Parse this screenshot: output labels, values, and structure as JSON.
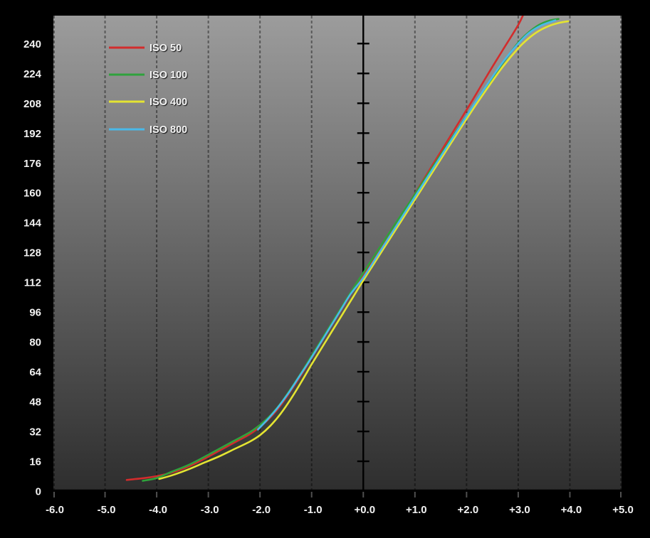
{
  "chart_data": {
    "type": "line",
    "title": "",
    "xlabel": "",
    "ylabel": "",
    "xlim": [
      -6,
      5
    ],
    "ylim": [
      0,
      255
    ],
    "grid": "vertical-dashed-gridlines-only",
    "legend_position": "top-left-inside-plot",
    "x_ticks": [
      {
        "value": -6,
        "label": "-6.0"
      },
      {
        "value": -5,
        "label": "-5.0"
      },
      {
        "value": -4,
        "label": "-4.0"
      },
      {
        "value": -3,
        "label": "-3.0"
      },
      {
        "value": -2,
        "label": "-2.0"
      },
      {
        "value": -1,
        "label": "-1.0"
      },
      {
        "value": 0,
        "label": "+0.0"
      },
      {
        "value": 1,
        "label": "+1.0"
      },
      {
        "value": 2,
        "label": "+2.0"
      },
      {
        "value": 3,
        "label": "+3.0"
      },
      {
        "value": 4,
        "label": "+4.0"
      },
      {
        "value": 5,
        "label": "+5.0"
      }
    ],
    "y_ticks": [
      {
        "value": 0,
        "label": "0"
      },
      {
        "value": 16,
        "label": "16"
      },
      {
        "value": 32,
        "label": "32"
      },
      {
        "value": 48,
        "label": "48"
      },
      {
        "value": 64,
        "label": "64"
      },
      {
        "value": 80,
        "label": "80"
      },
      {
        "value": 96,
        "label": "96"
      },
      {
        "value": 112,
        "label": "112"
      },
      {
        "value": 128,
        "label": "128"
      },
      {
        "value": 144,
        "label": "144"
      },
      {
        "value": 160,
        "label": "160"
      },
      {
        "value": 176,
        "label": "176"
      },
      {
        "value": 192,
        "label": "192"
      },
      {
        "value": 208,
        "label": "208"
      },
      {
        "value": 224,
        "label": "224"
      },
      {
        "value": 240,
        "label": "240"
      }
    ],
    "series": [
      {
        "name": "ISO 50",
        "color": "#d22c2c",
        "points": [
          [
            -4.58,
            6
          ],
          [
            -4.3,
            6.8
          ],
          [
            -4.0,
            8
          ],
          [
            -3.7,
            10
          ],
          [
            -3.4,
            13
          ],
          [
            -3.1,
            17
          ],
          [
            -2.8,
            21.5
          ],
          [
            -2.5,
            26
          ],
          [
            -2.2,
            30.5
          ],
          [
            -2.0,
            34.5
          ],
          [
            -1.8,
            39.5
          ],
          [
            -1.6,
            46
          ],
          [
            -1.4,
            54
          ],
          [
            -1.2,
            62.5
          ],
          [
            -1.0,
            71.5
          ],
          [
            -0.8,
            80.5
          ],
          [
            -0.6,
            89.5
          ],
          [
            -0.4,
            98.5
          ],
          [
            -0.2,
            107.5
          ],
          [
            0,
            116
          ],
          [
            0.3,
            129
          ],
          [
            0.6,
            142
          ],
          [
            0.9,
            155
          ],
          [
            1.2,
            168.5
          ],
          [
            1.5,
            182
          ],
          [
            1.8,
            195.5
          ],
          [
            2.1,
            209
          ],
          [
            2.4,
            223
          ],
          [
            2.7,
            236.5
          ],
          [
            3.0,
            250
          ],
          [
            3.12,
            257
          ]
        ]
      },
      {
        "name": "ISO 100",
        "color": "#2fa23c",
        "points": [
          [
            -4.27,
            5.5
          ],
          [
            -4.0,
            7
          ],
          [
            -3.7,
            10.5
          ],
          [
            -3.4,
            13.8
          ],
          [
            -3.1,
            18
          ],
          [
            -2.8,
            22.5
          ],
          [
            -2.5,
            27
          ],
          [
            -2.2,
            31.5
          ],
          [
            -2.0,
            35.5
          ],
          [
            -1.8,
            40.5
          ],
          [
            -1.6,
            47
          ],
          [
            -1.4,
            55
          ],
          [
            -1.2,
            63.5
          ],
          [
            -1.0,
            72.5
          ],
          [
            -0.8,
            81.5
          ],
          [
            -0.6,
            90.5
          ],
          [
            -0.4,
            99.5
          ],
          [
            -0.2,
            108.5
          ],
          [
            0,
            117
          ],
          [
            0.3,
            129.8
          ],
          [
            0.6,
            142.5
          ],
          [
            0.9,
            155
          ],
          [
            1.2,
            167.8
          ],
          [
            1.5,
            180.5
          ],
          [
            1.8,
            193
          ],
          [
            2.1,
            205.5
          ],
          [
            2.4,
            217.5
          ],
          [
            2.7,
            229.5
          ],
          [
            3.0,
            240.5
          ],
          [
            3.2,
            246
          ],
          [
            3.4,
            250
          ],
          [
            3.6,
            252.3
          ],
          [
            3.78,
            253.2
          ]
        ]
      },
      {
        "name": "ISO 400",
        "color": "#e4e432",
        "points": [
          [
            -3.95,
            6.5
          ],
          [
            -3.7,
            8.5
          ],
          [
            -3.4,
            11.5
          ],
          [
            -3.1,
            15
          ],
          [
            -2.8,
            18.5
          ],
          [
            -2.5,
            22.5
          ],
          [
            -2.2,
            26.5
          ],
          [
            -2.0,
            30
          ],
          [
            -1.8,
            35
          ],
          [
            -1.6,
            41.5
          ],
          [
            -1.4,
            49.5
          ],
          [
            -1.2,
            58.5
          ],
          [
            -1.0,
            68
          ],
          [
            -0.8,
            77
          ],
          [
            -0.6,
            86
          ],
          [
            -0.4,
            95
          ],
          [
            -0.2,
            104
          ],
          [
            0,
            113
          ],
          [
            0.3,
            126
          ],
          [
            0.6,
            139
          ],
          [
            0.9,
            152
          ],
          [
            1.2,
            165
          ],
          [
            1.5,
            178
          ],
          [
            1.8,
            191
          ],
          [
            2.1,
            203.8
          ],
          [
            2.4,
            216
          ],
          [
            2.7,
            227.5
          ],
          [
            3.0,
            237.5
          ],
          [
            3.2,
            242.8
          ],
          [
            3.4,
            246.8
          ],
          [
            3.6,
            249.5
          ],
          [
            3.8,
            251.2
          ],
          [
            3.97,
            252
          ]
        ]
      },
      {
        "name": "ISO 800",
        "color": "#49b9e9",
        "points": [
          [
            -2.04,
            33
          ],
          [
            -1.85,
            38.5
          ],
          [
            -1.65,
            45
          ],
          [
            -1.45,
            52.5
          ],
          [
            -1.25,
            61
          ],
          [
            -1.05,
            69.5
          ],
          [
            -0.85,
            78.5
          ],
          [
            -0.65,
            87.5
          ],
          [
            -0.45,
            96.5
          ],
          [
            -0.25,
            105.5
          ],
          [
            0,
            114.5
          ],
          [
            0.3,
            127.5
          ],
          [
            0.6,
            140.5
          ],
          [
            0.9,
            153.5
          ],
          [
            1.2,
            166.5
          ],
          [
            1.5,
            179.5
          ],
          [
            1.8,
            192.5
          ],
          [
            2.1,
            205.5
          ],
          [
            2.4,
            218
          ],
          [
            2.7,
            230
          ],
          [
            3.0,
            240
          ],
          [
            3.2,
            245.5
          ],
          [
            3.45,
            249.8
          ],
          [
            3.72,
            252.5
          ]
        ]
      }
    ]
  },
  "colors": {
    "canvas_bg": "#000000",
    "plot_bg_top": "#9c9c9c",
    "plot_bg_bottom": "#2e2e2e",
    "gridline": "rgba(0,0,0,0.42)",
    "axis": "#000000",
    "tick_below_axis": "#4f4f4f",
    "label_text": "#f2f2f2"
  }
}
